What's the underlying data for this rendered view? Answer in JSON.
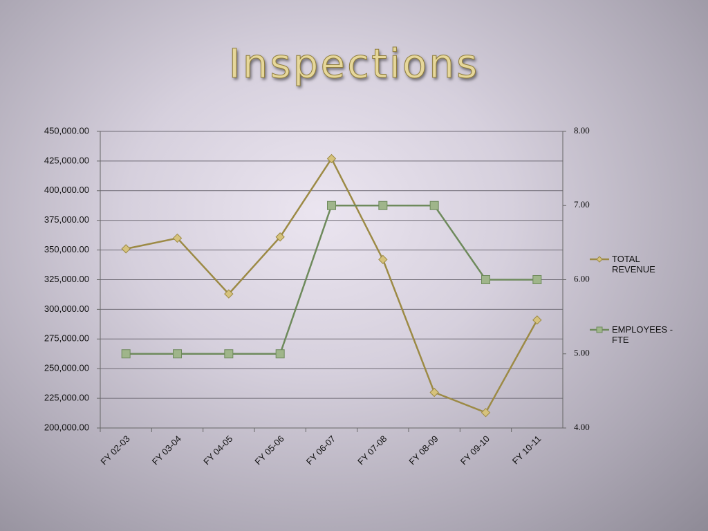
{
  "chart_data": {
    "type": "line",
    "title": "Inspections",
    "categories": [
      "FY 02-03",
      "FY 03-04",
      "FY 04-05",
      "FY 05-06",
      "FY 06-07",
      "FY 07-08",
      "FY 08-09",
      "FY 09-10",
      "FY 10-11"
    ],
    "series": [
      {
        "name": "TOTAL REVENUE",
        "color": "#9c8a45",
        "marker": "diamond",
        "values": [
          351000,
          360000,
          313000,
          361000,
          427000,
          342000,
          230000,
          213000,
          291000
        ]
      },
      {
        "name": "EMPLOYEES -FTE",
        "color": "#6e8a5c",
        "marker": "square",
        "axis": "y2",
        "values": [
          5,
          5,
          5,
          5,
          7,
          7,
          7,
          6,
          6
        ]
      }
    ],
    "ylim": [
      200000,
      450000
    ],
    "yticks": [
      {
        "value": 200000,
        "label": "200,000.00"
      },
      {
        "value": 225000,
        "label": "225,000.00"
      },
      {
        "value": 250000,
        "label": "250,000.00"
      },
      {
        "value": 275000,
        "label": "275,000.00"
      },
      {
        "value": 300000,
        "label": "300,000.00"
      },
      {
        "value": 325000,
        "label": "325,000.00"
      },
      {
        "value": 350000,
        "label": "350,000.00"
      },
      {
        "value": 375000,
        "label": "375,000.00"
      },
      {
        "value": 400000,
        "label": "400,000.00"
      },
      {
        "value": 425000,
        "label": "425,000.00"
      },
      {
        "value": 450000,
        "label": "450,000.00"
      }
    ],
    "y2lim": [
      4,
      8
    ],
    "y2ticks": [
      {
        "value": 4,
        "label": "4.00"
      },
      {
        "value": 5,
        "label": "5.00"
      },
      {
        "value": 6,
        "label": "6.00"
      },
      {
        "value": 7,
        "label": "7.00"
      },
      {
        "value": 8,
        "label": "8.00"
      }
    ],
    "grid": true,
    "legend": "right"
  }
}
